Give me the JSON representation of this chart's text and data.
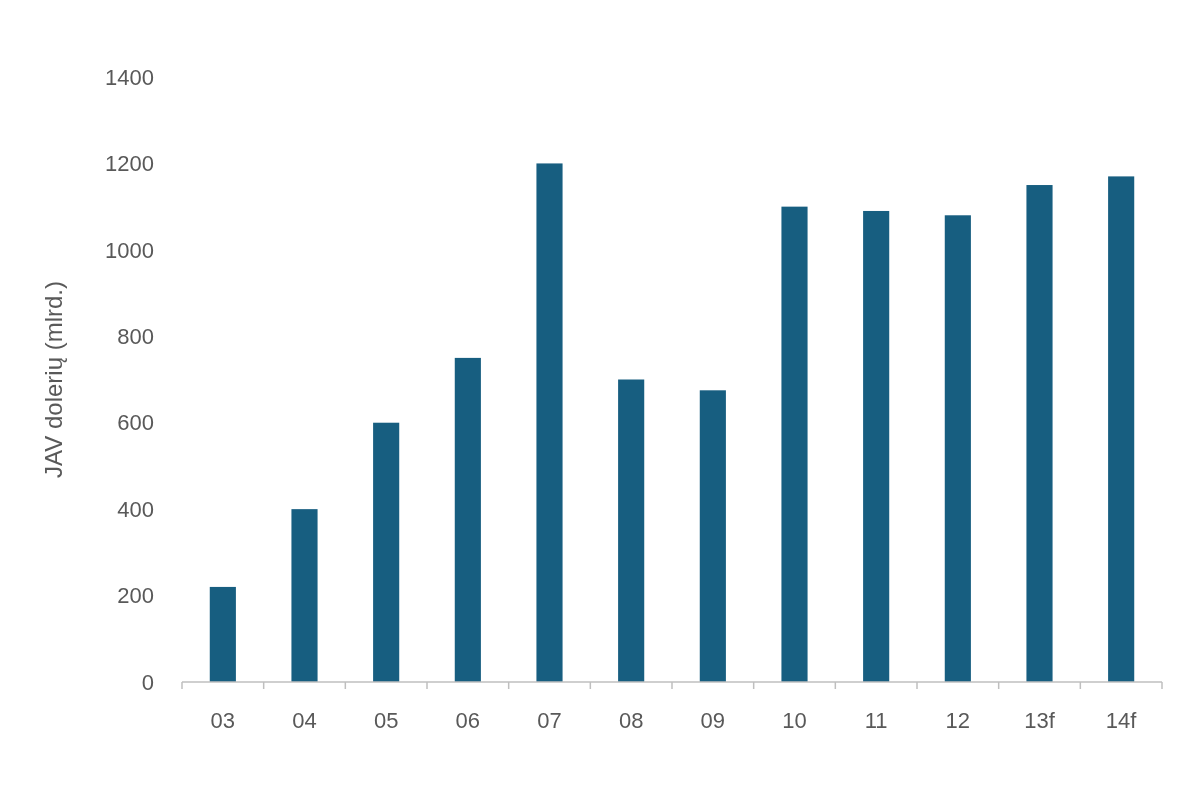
{
  "chart_data": {
    "type": "bar",
    "ylabel": "JAV dolerių (mlrd.)",
    "categories": [
      "03",
      "04",
      "05",
      "06",
      "07",
      "08",
      "09",
      "10",
      "11",
      "12",
      "13f",
      "14f"
    ],
    "values": [
      220,
      400,
      600,
      750,
      1200,
      700,
      675,
      1100,
      1090,
      1080,
      1150,
      1170
    ],
    "color": "#175e80",
    "ylim": [
      0,
      1400
    ],
    "yticks": [
      0,
      200,
      400,
      600,
      800,
      1000,
      1200,
      1400
    ],
    "grid": false
  }
}
